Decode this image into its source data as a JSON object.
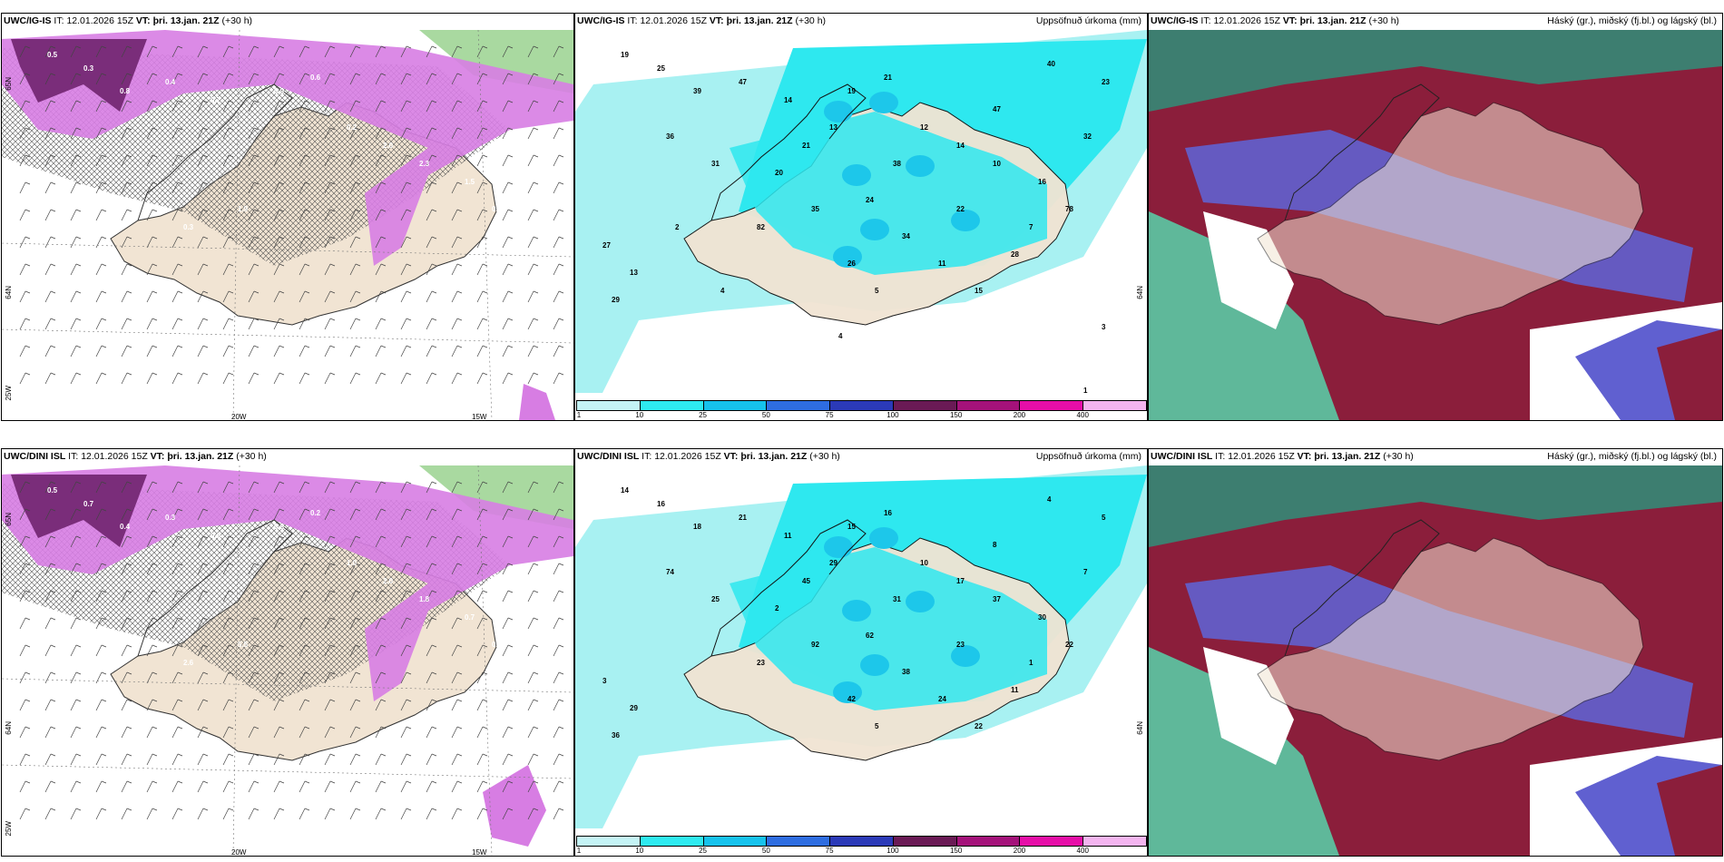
{
  "colors": {
    "land": "#f1e4d3",
    "pink": "#d77de3",
    "purple": "#7a2d7a",
    "green": "#a9d9a0",
    "cyan_light": "#a8f1f2",
    "cyan": "#2ee8ef",
    "cyan_mid": "#1dc7ea",
    "blue_mid": "#3f68d8",
    "red_dark": "#8b1e3b",
    "teal": "#2f8f7a",
    "blue_violet": "#6060d0"
  },
  "panels": [
    {
      "id": "top-left",
      "model": "UWC/IG-IS",
      "it_label": "IT:",
      "it_value": "12.01.2026 15Z",
      "vt_label": "VT:",
      "vt_value": "þri. 13.jan. 21Z",
      "offset": "(+30 h)",
      "right_title": "",
      "axis": {
        "lat1": "65N",
        "lat2": "64N",
        "lon1": "25W",
        "lon2": "20W",
        "lon3": "15W"
      },
      "labels": [
        "0.5",
        "0.3",
        "0.8",
        "0.4",
        "0.7",
        "0.9",
        "0.6",
        "0.2",
        "2.0",
        "2.3",
        "1.5",
        "0.5",
        "0.3",
        "1.9"
      ]
    },
    {
      "id": "top-middle",
      "model": "UWC/IG-IS",
      "it_label": "IT:",
      "it_value": "12.01.2026 15Z",
      "vt_label": "VT:",
      "vt_value": "þri. 13.jan. 21Z",
      "offset": "(+30 h)",
      "right_title": "Uppsöfnuð úrkoma (mm)",
      "axis": {
        "lat1": "",
        "lat2": "64N",
        "lon1": "",
        "lon2": "",
        "lon3": ""
      },
      "labels": [
        "19",
        "25",
        "39",
        "47",
        "14",
        "19",
        "21",
        "12",
        "14",
        "10",
        "16",
        "78",
        "82",
        "35",
        "24",
        "34",
        "31",
        "36",
        "13",
        "29",
        "28",
        "15",
        "11",
        "26",
        "21",
        "38",
        "22",
        "13",
        "47",
        "32",
        "23",
        "40",
        "27",
        "20",
        "7",
        "5",
        "4",
        "2",
        "3",
        "1",
        "4"
      ]
    },
    {
      "id": "top-right",
      "model": "UWC/IG-IS",
      "it_label": "IT:",
      "it_value": "12.01.2026 15Z",
      "vt_label": "VT:",
      "vt_value": "þri. 13.jan. 21Z",
      "offset": "(+30 h)",
      "right_title": "Háský (gr.), miðský (fj.bl.) og lágský (bl.)",
      "axis": {
        "lat1": "",
        "lat2": "",
        "lon1": "",
        "lon2": "",
        "lon3": ""
      },
      "labels": []
    },
    {
      "id": "bottom-left",
      "model": "UWC/DINI ISL",
      "it_label": "IT:",
      "it_value": "12.01.2026 15Z",
      "vt_label": "VT:",
      "vt_value": "þri. 13.jan. 21Z",
      "offset": "(+30 h)",
      "right_title": "",
      "axis": {
        "lat1": "65N",
        "lat2": "64N",
        "lon1": "25W",
        "lon2": "20W",
        "lon3": "15W"
      },
      "labels": [
        "0.5",
        "0.7",
        "0.4",
        "0.3",
        "0.6",
        "0.8",
        "0.2",
        "1.0",
        "2.0",
        "1.8",
        "0.7",
        "0.3",
        "2.6",
        "5.5"
      ]
    },
    {
      "id": "bottom-middle",
      "model": "UWC/DINI ISL",
      "it_label": "IT:",
      "it_value": "12.01.2026 15Z",
      "vt_label": "VT:",
      "vt_value": "þri. 13.jan. 21Z",
      "offset": "(+30 h)",
      "right_title": "Uppsöfnuð úrkoma (mm)",
      "axis": {
        "lat1": "",
        "lat2": "64N",
        "lon1": "",
        "lon2": "",
        "lon3": ""
      },
      "labels": [
        "14",
        "16",
        "18",
        "21",
        "11",
        "15",
        "16",
        "10",
        "17",
        "37",
        "30",
        "22",
        "23",
        "92",
        "62",
        "38",
        "25",
        "74",
        "29",
        "36",
        "11",
        "22",
        "24",
        "42",
        "45",
        "31",
        "23",
        "29",
        "8",
        "7",
        "5",
        "4",
        "3",
        "2",
        "1",
        "5"
      ]
    },
    {
      "id": "bottom-right",
      "model": "UWC/DINI ISL",
      "it_label": "IT:",
      "it_value": "12.01.2026 15Z",
      "vt_label": "VT:",
      "vt_value": "þri. 13.jan. 21Z",
      "offset": "(+30 h)",
      "right_title": "Háský (gr.), miðský (fj.bl.) og lágský (bl.)",
      "axis": {
        "lat1": "",
        "lat2": "",
        "lon1": "",
        "lon2": "",
        "lon3": ""
      },
      "labels": []
    }
  ],
  "colorbar": {
    "colors": [
      "#c4f3f5",
      "#2eeaf0",
      "#16c2ec",
      "#2e6de0",
      "#2b3ab8",
      "#6a1a55",
      "#a4127a",
      "#e60ea8",
      "#f3b4ef"
    ],
    "ticks": [
      "1",
      "10",
      "25",
      "50",
      "75",
      "100",
      "150",
      "200",
      "400"
    ]
  }
}
